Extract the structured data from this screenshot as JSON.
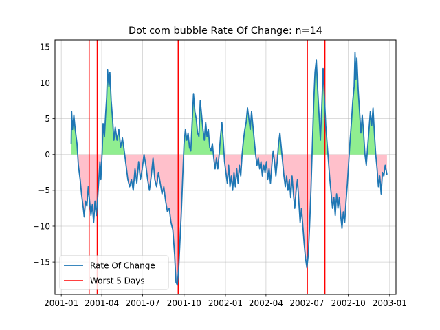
{
  "chart_data": {
    "type": "line",
    "title": "Dot com bubble Rate Of Change: n=14",
    "xlabel": "",
    "ylabel": "",
    "xlim": [
      "2000-12-18",
      "2003-01-15"
    ],
    "ylim": [
      -19.5,
      16
    ],
    "x_tick_labels": [
      "2001-01",
      "2001-04",
      "2001-07",
      "2001-10",
      "2002-01",
      "2002-04",
      "2002-07",
      "2002-10",
      "2003-01"
    ],
    "x_tick_dates": [
      "2001-01-01",
      "2001-04-01",
      "2001-07-01",
      "2001-10-01",
      "2002-01-01",
      "2002-04-01",
      "2002-07-01",
      "2002-10-01",
      "2003-01-01"
    ],
    "y_ticks": [
      -15,
      -10,
      -5,
      0,
      5,
      10,
      15
    ],
    "y_tick_labels": [
      "−15",
      "−10",
      "−5",
      "0",
      "5",
      "10",
      "15"
    ],
    "grid": true,
    "legend": {
      "position": "lower-left",
      "entries": [
        "Rate Of Change",
        "Worst 5 Days"
      ]
    },
    "fill_colors": {
      "positive": "#90ee90",
      "negative": "#ffc0cb"
    },
    "series": [
      {
        "name": "Rate Of Change",
        "color": "#1f77b4",
        "points": [
          [
            "2001-01-23",
            1.5
          ],
          [
            "2001-01-24",
            6.0
          ],
          [
            "2001-01-26",
            3.5
          ],
          [
            "2001-01-29",
            5.5
          ],
          [
            "2001-02-01",
            3.5
          ],
          [
            "2001-02-05",
            1.5
          ],
          [
            "2001-02-08",
            -1.5
          ],
          [
            "2001-02-12",
            -3.5
          ],
          [
            "2001-02-15",
            -5.5
          ],
          [
            "2001-02-19",
            -7.5
          ],
          [
            "2001-02-21",
            -8.7
          ],
          [
            "2001-02-24",
            -6.5
          ],
          [
            "2001-02-27",
            -7.2
          ],
          [
            "2001-03-02",
            -4.5
          ],
          [
            "2001-03-05",
            -6.5
          ],
          [
            "2001-03-08",
            -8.5
          ],
          [
            "2001-03-11",
            -7.0
          ],
          [
            "2001-03-14",
            -9.5
          ],
          [
            "2001-03-17",
            -6.5
          ],
          [
            "2001-03-20",
            -8.5
          ],
          [
            "2001-03-23",
            -6.0
          ],
          [
            "2001-03-26",
            -3.0
          ],
          [
            "2001-03-28",
            -1.0
          ],
          [
            "2001-03-30",
            -3.5
          ],
          [
            "2001-04-02",
            0.5
          ],
          [
            "2001-04-04",
            4.3
          ],
          [
            "2001-04-07",
            2.5
          ],
          [
            "2001-04-10",
            6.0
          ],
          [
            "2001-04-12",
            8.0
          ],
          [
            "2001-04-14",
            11.8
          ],
          [
            "2001-04-17",
            9.5
          ],
          [
            "2001-04-19",
            11.5
          ],
          [
            "2001-04-22",
            7.5
          ],
          [
            "2001-04-25",
            5.0
          ],
          [
            "2001-04-28",
            2.0
          ],
          [
            "2001-05-01",
            3.8
          ],
          [
            "2001-05-05",
            2.0
          ],
          [
            "2001-05-09",
            3.5
          ],
          [
            "2001-05-13",
            1.0
          ],
          [
            "2001-05-17",
            2.3
          ],
          [
            "2001-05-21",
            0.5
          ],
          [
            "2001-05-25",
            -1.5
          ],
          [
            "2001-05-29",
            -3.5
          ],
          [
            "2001-06-02",
            -4.5
          ],
          [
            "2001-06-06",
            -3.5
          ],
          [
            "2001-06-10",
            -5.0
          ],
          [
            "2001-06-14",
            -2.0
          ],
          [
            "2001-06-18",
            -4.0
          ],
          [
            "2001-06-22",
            -1.0
          ],
          [
            "2001-06-26",
            -3.5
          ],
          [
            "2001-06-30",
            -2.0
          ],
          [
            "2001-07-04",
            0.0
          ],
          [
            "2001-07-08",
            -1.5
          ],
          [
            "2001-07-12",
            -3.5
          ],
          [
            "2001-07-16",
            -5.0
          ],
          [
            "2001-07-20",
            -3.0
          ],
          [
            "2001-07-24",
            -0.5
          ],
          [
            "2001-07-28",
            -3.5
          ],
          [
            "2001-08-01",
            -4.5
          ],
          [
            "2001-08-05",
            -2.5
          ],
          [
            "2001-08-09",
            -4.0
          ],
          [
            "2001-08-13",
            -5.5
          ],
          [
            "2001-08-17",
            -4.5
          ],
          [
            "2001-08-21",
            -6.5
          ],
          [
            "2001-08-25",
            -8.0
          ],
          [
            "2001-08-29",
            -7.5
          ],
          [
            "2001-09-02",
            -9.5
          ],
          [
            "2001-09-06",
            -10.5
          ],
          [
            "2001-09-10",
            -14.0
          ],
          [
            "2001-09-13",
            -17.8
          ],
          [
            "2001-09-16",
            -18.2
          ],
          [
            "2001-09-19",
            -16.0
          ],
          [
            "2001-09-22",
            -12.0
          ],
          [
            "2001-09-25",
            -8.0
          ],
          [
            "2001-09-28",
            -3.0
          ],
          [
            "2001-10-01",
            1.5
          ],
          [
            "2001-10-04",
            3.5
          ],
          [
            "2001-10-07",
            2.0
          ],
          [
            "2001-10-10",
            3.0
          ],
          [
            "2001-10-13",
            1.0
          ],
          [
            "2001-10-16",
            0.5
          ],
          [
            "2001-10-19",
            4.5
          ],
          [
            "2001-10-22",
            8.5
          ],
          [
            "2001-10-25",
            6.0
          ],
          [
            "2001-10-28",
            5.0
          ],
          [
            "2001-10-31",
            3.0
          ],
          [
            "2001-11-03",
            2.5
          ],
          [
            "2001-11-06",
            7.5
          ],
          [
            "2001-11-09",
            5.5
          ],
          [
            "2001-11-12",
            3.5
          ],
          [
            "2001-11-15",
            2.0
          ],
          [
            "2001-11-18",
            4.5
          ],
          [
            "2001-11-21",
            2.5
          ],
          [
            "2001-11-24",
            3.5
          ],
          [
            "2001-11-27",
            1.0
          ],
          [
            "2001-11-30",
            0.5
          ],
          [
            "2001-12-03",
            1.5
          ],
          [
            "2001-12-06",
            -0.5
          ],
          [
            "2001-12-09",
            -2.0
          ],
          [
            "2001-12-12",
            -0.5
          ],
          [
            "2001-12-15",
            -2.0
          ],
          [
            "2001-12-18",
            0.0
          ],
          [
            "2001-12-21",
            2.5
          ],
          [
            "2001-12-24",
            4.5
          ],
          [
            "2001-12-27",
            2.0
          ],
          [
            "2001-12-30",
            -1.0
          ],
          [
            "2002-01-02",
            -2.5
          ],
          [
            "2002-01-05",
            -4.0
          ],
          [
            "2002-01-08",
            -1.5
          ],
          [
            "2002-01-11",
            -4.5
          ],
          [
            "2002-01-14",
            -3.0
          ],
          [
            "2002-01-17",
            -5.0
          ],
          [
            "2002-01-20",
            -2.5
          ],
          [
            "2002-01-23",
            -4.5
          ],
          [
            "2002-01-26",
            -2.0
          ],
          [
            "2002-01-29",
            -4.0
          ],
          [
            "2002-02-01",
            -1.5
          ],
          [
            "2002-02-04",
            -3.0
          ],
          [
            "2002-02-07",
            0.0
          ],
          [
            "2002-02-10",
            2.0
          ],
          [
            "2002-02-13",
            3.5
          ],
          [
            "2002-02-16",
            4.5
          ],
          [
            "2002-02-19",
            6.5
          ],
          [
            "2002-02-22",
            5.0
          ],
          [
            "2002-02-25",
            3.5
          ],
          [
            "2002-02-28",
            6.0
          ],
          [
            "2002-03-03",
            4.0
          ],
          [
            "2002-03-06",
            2.0
          ],
          [
            "2002-03-09",
            0.0
          ],
          [
            "2002-03-12",
            -1.5
          ],
          [
            "2002-03-15",
            -0.5
          ],
          [
            "2002-03-18",
            -2.0
          ],
          [
            "2002-03-21",
            -1.0
          ],
          [
            "2002-03-24",
            -3.0
          ],
          [
            "2002-03-27",
            -1.5
          ],
          [
            "2002-03-30",
            -2.5
          ],
          [
            "2002-04-02",
            -1.0
          ],
          [
            "2002-04-05",
            -3.5
          ],
          [
            "2002-04-08",
            -2.0
          ],
          [
            "2002-04-11",
            -4.0
          ],
          [
            "2002-04-14",
            -1.5
          ],
          [
            "2002-04-17",
            0.5
          ],
          [
            "2002-04-20",
            -1.0
          ],
          [
            "2002-04-23",
            -3.0
          ],
          [
            "2002-04-26",
            -1.0
          ],
          [
            "2002-04-29",
            1.5
          ],
          [
            "2002-05-02",
            3.0
          ],
          [
            "2002-05-05",
            1.0
          ],
          [
            "2002-05-08",
            -1.0
          ],
          [
            "2002-05-11",
            -3.0
          ],
          [
            "2002-05-14",
            -4.5
          ],
          [
            "2002-05-17",
            -3.0
          ],
          [
            "2002-05-20",
            -5.0
          ],
          [
            "2002-05-23",
            -3.5
          ],
          [
            "2002-05-26",
            -6.0
          ],
          [
            "2002-05-29",
            -3.0
          ],
          [
            "2002-06-01",
            -5.5
          ],
          [
            "2002-06-04",
            -7.5
          ],
          [
            "2002-06-07",
            -5.0
          ],
          [
            "2002-06-10",
            -3.5
          ],
          [
            "2002-06-13",
            -6.5
          ],
          [
            "2002-06-16",
            -9.5
          ],
          [
            "2002-06-19",
            -7.5
          ],
          [
            "2002-06-22",
            -10.0
          ],
          [
            "2002-06-25",
            -12.5
          ],
          [
            "2002-06-28",
            -14.5
          ],
          [
            "2002-07-01",
            -15.8
          ],
          [
            "2002-07-04",
            -14.0
          ],
          [
            "2002-07-07",
            -10.0
          ],
          [
            "2002-07-10",
            -5.0
          ],
          [
            "2002-07-13",
            1.0
          ],
          [
            "2002-07-16",
            7.0
          ],
          [
            "2002-07-19",
            11.5
          ],
          [
            "2002-07-22",
            13.2
          ],
          [
            "2002-07-25",
            9.0
          ],
          [
            "2002-07-28",
            5.5
          ],
          [
            "2002-07-31",
            2.0
          ],
          [
            "2002-08-03",
            6.5
          ],
          [
            "2002-08-06",
            12.0
          ],
          [
            "2002-08-09",
            8.0
          ],
          [
            "2002-08-12",
            4.0
          ],
          [
            "2002-08-15",
            1.5
          ],
          [
            "2002-08-18",
            -1.0
          ],
          [
            "2002-08-21",
            -3.5
          ],
          [
            "2002-08-24",
            -5.5
          ],
          [
            "2002-08-27",
            -7.5
          ],
          [
            "2002-08-30",
            -6.0
          ],
          [
            "2002-09-02",
            -8.5
          ],
          [
            "2002-09-05",
            -5.5
          ],
          [
            "2002-09-08",
            -7.5
          ],
          [
            "2002-09-11",
            -6.0
          ],
          [
            "2002-09-14",
            -8.5
          ],
          [
            "2002-09-17",
            -10.3
          ],
          [
            "2002-09-20",
            -8.0
          ],
          [
            "2002-09-23",
            -9.5
          ],
          [
            "2002-09-26",
            -6.5
          ],
          [
            "2002-09-29",
            -4.0
          ],
          [
            "2002-10-02",
            -1.0
          ],
          [
            "2002-10-05",
            2.0
          ],
          [
            "2002-10-08",
            4.5
          ],
          [
            "2002-10-11",
            7.5
          ],
          [
            "2002-10-14",
            9.5
          ],
          [
            "2002-10-16",
            14.3
          ],
          [
            "2002-10-18",
            10.5
          ],
          [
            "2002-10-20",
            13.5
          ],
          [
            "2002-10-23",
            9.0
          ],
          [
            "2002-10-26",
            6.0
          ],
          [
            "2002-10-29",
            3.0
          ],
          [
            "2002-11-01",
            5.5
          ],
          [
            "2002-11-04",
            3.0
          ],
          [
            "2002-11-07",
            0.0
          ],
          [
            "2002-11-10",
            -1.5
          ],
          [
            "2002-11-13",
            1.0
          ],
          [
            "2002-11-16",
            3.5
          ],
          [
            "2002-11-19",
            6.0
          ],
          [
            "2002-11-22",
            4.0
          ],
          [
            "2002-11-25",
            6.5
          ],
          [
            "2002-11-28",
            3.0
          ],
          [
            "2002-12-01",
            0.0
          ],
          [
            "2002-12-04",
            -2.0
          ],
          [
            "2002-12-07",
            -4.5
          ],
          [
            "2002-12-10",
            -3.0
          ],
          [
            "2002-12-13",
            -5.5
          ],
          [
            "2002-12-16",
            -2.5
          ],
          [
            "2002-12-19",
            -3.0
          ],
          [
            "2002-12-22",
            -1.5
          ],
          [
            "2002-12-26",
            -2.8
          ]
        ]
      }
    ],
    "worst_days": {
      "name": "Worst 5 Days",
      "color": "#ff0000",
      "dates": [
        "2001-03-04",
        "2001-03-22",
        "2001-09-18",
        "2002-07-02",
        "2002-08-10"
      ]
    }
  }
}
